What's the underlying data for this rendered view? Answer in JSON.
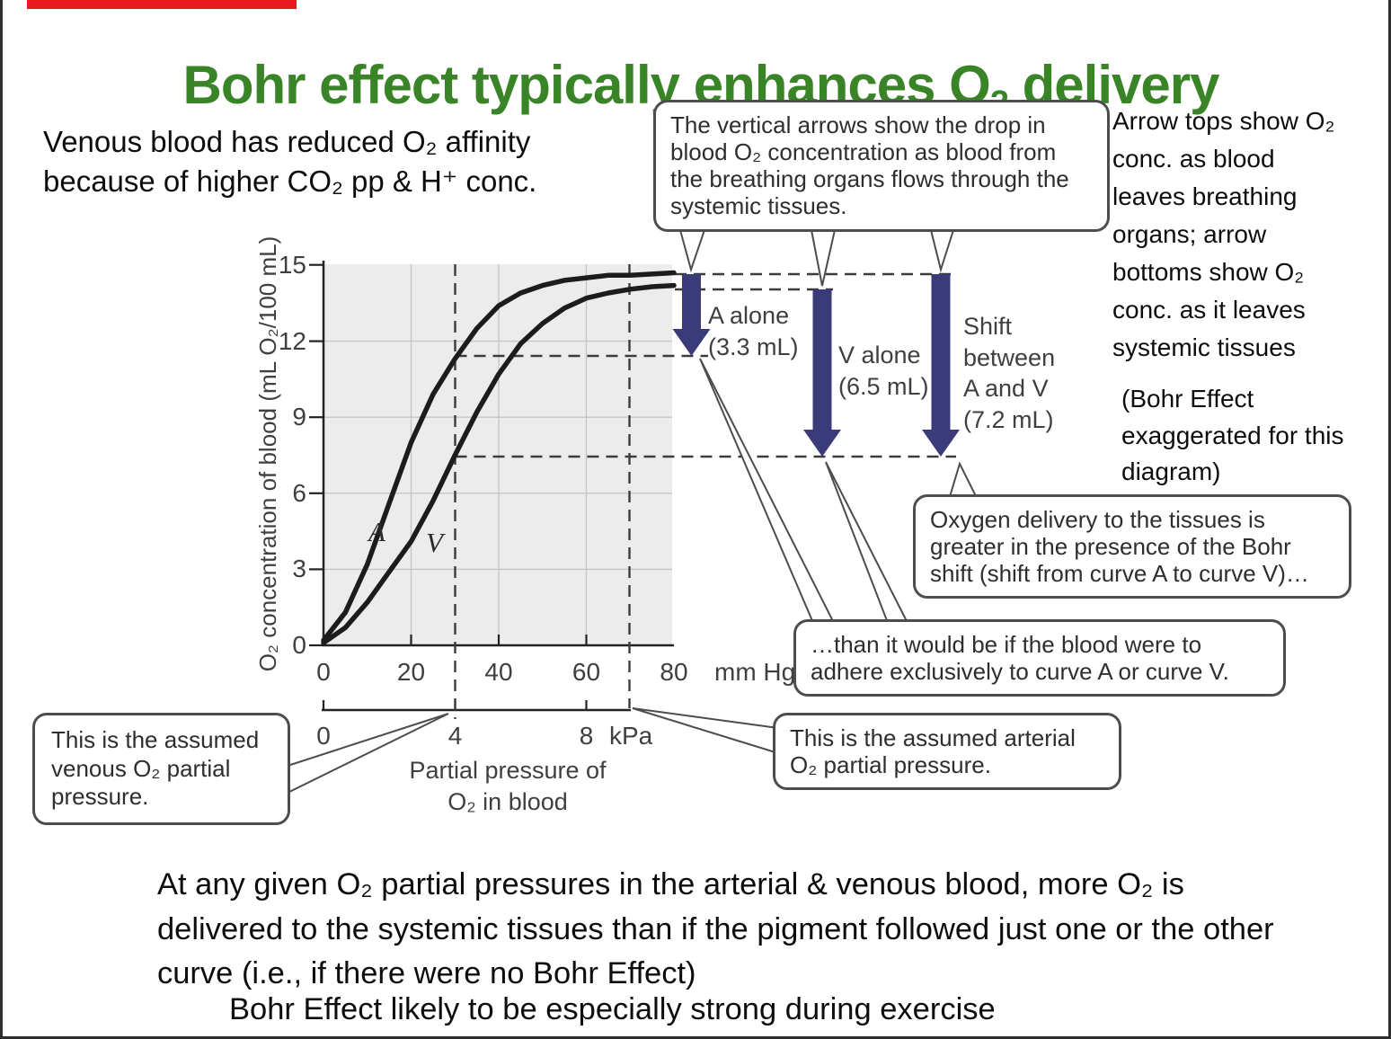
{
  "slide": {
    "title": {
      "pre": "Bohr effect typically enhances O",
      "sub": "2",
      "post": " delivery"
    },
    "intro": "Venous blood has reduced O₂ affinity because of higher CO₂ pp & H⁺ conc.",
    "right_note": "Arrow tops show O₂ conc. as blood leaves breathing organs; arrow bottoms show O₂ conc. as it leaves systemic tissues",
    "bohr_note": "(Bohr Effect exaggerated for this diagram)",
    "bottom_para": "At any given O₂ partial pressures in the arterial & venous blood, more O₂ is delivered to the systemic tissues than if the pigment followed just one or the other curve (i.e., if there were no Bohr Effect)",
    "bottom_line2": "Bohr Effect likely to be especially strong during exercise"
  },
  "callouts": {
    "vertical_arrows": "The vertical arrows show the drop in blood O₂ concentration as blood from the breathing organs flows through the systemic tissues.",
    "oxygen_delivery": "Oxygen delivery to the tissues is greater in the presence of the Bohr shift (shift from curve A to curve V)…",
    "than_would": "…than it would be if the blood were to adhere exclusively to curve A or curve V.",
    "venous": "This is the assumed venous O₂ partial pressure.",
    "arterial": "This is the assumed arterial O₂ partial pressure."
  },
  "drop_labels": {
    "a_alone": [
      "A alone",
      "(3.3 mL)"
    ],
    "v_alone": [
      "V alone",
      "(6.5 mL)"
    ],
    "shift": [
      "Shift",
      "between",
      "A and V",
      "(7.2 mL)"
    ]
  },
  "colors": {
    "title_green": "#3a8428",
    "arrow_navy": "#3b3b79",
    "accent_red": "#e8191f",
    "plot_bg": "#ececec"
  },
  "chart_data": {
    "type": "line",
    "title": "",
    "xlabel": "Partial pressure of O₂ in blood",
    "ylabel": "O₂ concentration of blood (mL O₂/100 mL)",
    "x_units": [
      "mm Hg",
      "kPa"
    ],
    "x_ticks_mmhg": [
      0,
      20,
      40,
      60,
      80
    ],
    "x_ticks_kpa": [
      0,
      4,
      8
    ],
    "y_ticks": [
      0,
      3,
      6,
      9,
      12,
      15
    ],
    "xlim_mmhg": [
      0,
      80
    ],
    "ylim": [
      0,
      15
    ],
    "grid": true,
    "curve_labels": [
      "A",
      "V"
    ],
    "series": [
      {
        "name": "A",
        "x": [
          0,
          5,
          10,
          15,
          20,
          25,
          30,
          35,
          40,
          45,
          50,
          55,
          60,
          65,
          70,
          75,
          80
        ],
        "values": [
          0.2,
          1.3,
          3.2,
          5.6,
          8.0,
          9.9,
          11.3,
          12.5,
          13.4,
          13.9,
          14.2,
          14.4,
          14.5,
          14.6,
          14.6,
          14.65,
          14.7
        ]
      },
      {
        "name": "V",
        "x": [
          0,
          5,
          10,
          15,
          20,
          25,
          30,
          35,
          40,
          45,
          50,
          55,
          60,
          65,
          70,
          75,
          80
        ],
        "values": [
          0.1,
          0.7,
          1.7,
          2.9,
          4.1,
          5.7,
          7.5,
          9.2,
          10.7,
          11.9,
          12.7,
          13.3,
          13.7,
          13.9,
          14.05,
          14.15,
          14.2
        ]
      }
    ],
    "annotations": {
      "venous_po2_mmhg": 30,
      "arterial_po2_mmhg": 70,
      "drops_mL": [
        {
          "label": "A alone",
          "value": 3.3
        },
        {
          "label": "V alone",
          "value": 6.5
        },
        {
          "label": "Shift between A and V",
          "value": 7.2
        }
      ]
    }
  }
}
